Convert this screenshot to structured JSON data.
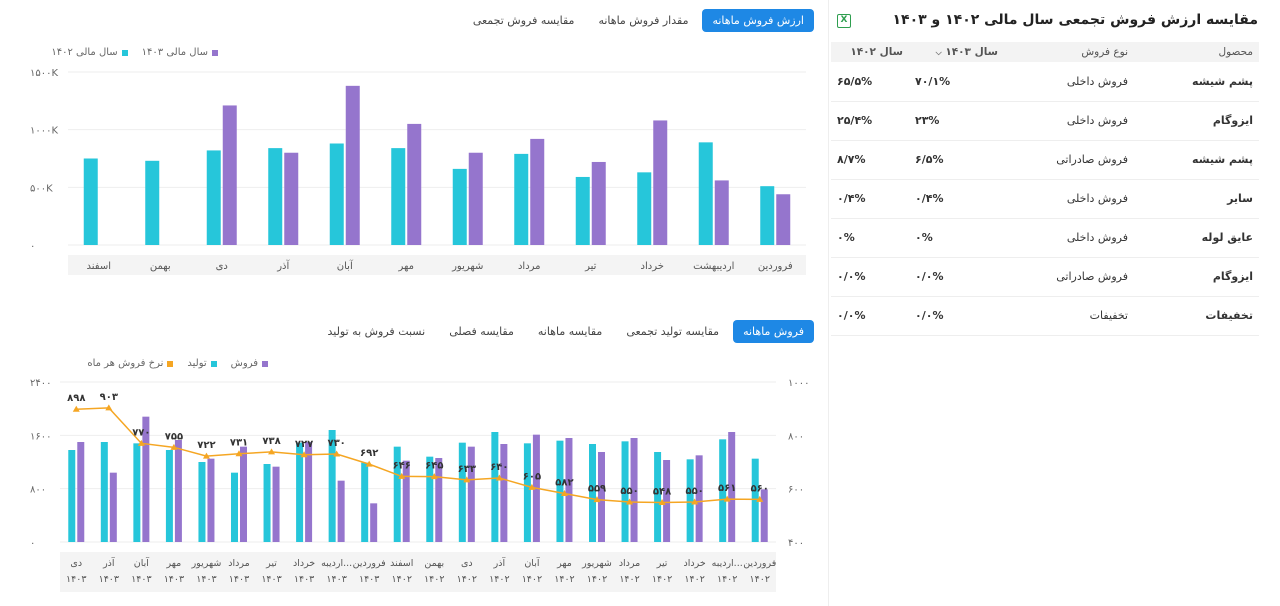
{
  "top_tabs": [
    "ارزش فروش ماهانه",
    "مقدار فروش ماهانه",
    "مقایسه فروش تجمعی"
  ],
  "top_active": 0,
  "bottom_tabs": [
    "فروش ماهانه",
    "مقایسه تولید تجمعی",
    "مقایسه ماهانه",
    "مقایسه فصلی",
    "نسبت فروش به تولید"
  ],
  "bottom_active": 0,
  "colors": {
    "teal": "#26c6da",
    "purple": "#9575cd",
    "orange": "#f5a623",
    "accent": "#1e88e5"
  },
  "chart_data": [
    {
      "type": "bar",
      "categories": [
        "فروردین",
        "اردیبهشت",
        "خرداد",
        "تیر",
        "مرداد",
        "شهریور",
        "مهر",
        "آبان",
        "آذر",
        "دی",
        "بهمن",
        "اسفند"
      ],
      "series": [
        {
          "name": "سال مالی ۱۴۰۲",
          "values": [
            510,
            890,
            630,
            590,
            790,
            660,
            840,
            880,
            840,
            820,
            730,
            750
          ]
        },
        {
          "name": "سال مالی ۱۴۰۳",
          "values": [
            440,
            560,
            1080,
            720,
            920,
            800,
            1050,
            1380,
            800,
            1210,
            null,
            null
          ]
        }
      ],
      "yticks": [
        "۰",
        "۵۰۰K",
        "۱۰۰۰K",
        "۱۵۰۰K"
      ],
      "ylim": [
        0,
        1500
      ]
    },
    {
      "type": "bar+line",
      "categories": [
        "فروردین ۱۴۰۲",
        "اردیبه... ۱۴۰۲",
        "خرداد ۱۴۰۲",
        "تیر ۱۴۰۲",
        "مرداد ۱۴۰۲",
        "شهریور ۱۴۰۲",
        "مهر ۱۴۰۲",
        "آبان ۱۴۰۲",
        "آذر ۱۴۰۲",
        "دی ۱۴۰۲",
        "بهمن ۱۴۰۲",
        "اسفند ۱۴۰۲",
        "فروردین ۱۴۰۳",
        "اردیبه... ۱۴۰۳",
        "خرداد ۱۴۰۳",
        "تیر ۱۴۰۳",
        "مرداد ۱۴۰۳",
        "شهریور ۱۴۰۳",
        "مهر ۱۴۰۳",
        "آبان ۱۴۰۳",
        "آذر ۱۴۰۳",
        "دی ۱۴۰۳"
      ],
      "series": [
        {
          "name": "تولید",
          "values": [
            1250,
            1540,
            1240,
            1350,
            1510,
            1470,
            1520,
            1480,
            1650,
            1490,
            1280,
            1430,
            1190,
            1680,
            1490,
            1170,
            1040,
            1200,
            1380,
            1480,
            1500,
            1380
          ]
        },
        {
          "name": "فروش",
          "values": [
            790,
            1650,
            1300,
            1230,
            1560,
            1350,
            1560,
            1610,
            1470,
            1430,
            1260,
            1220,
            580,
            920,
            1500,
            1130,
            1430,
            1250,
            1530,
            1880,
            1040,
            1500
          ]
        },
        {
          "name": "نرخ فروش هر ماه",
          "values": [
            560,
            561,
            550,
            548,
            550,
            559,
            582,
            605,
            640,
            633,
            645,
            646,
            692,
            730,
            727,
            738,
            731,
            722,
            755,
            770,
            903,
            898
          ]
        }
      ],
      "point_labels": [
        "۵۶۰",
        "۵۶۱",
        "۵۵۰",
        "۵۴۸",
        "۵۵۰",
        "۵۵۹",
        "۵۸۲",
        "۶۰۵",
        "۶۴۰",
        "۶۳۳",
        "۶۴۵",
        "۶۴۶",
        "۶۹۲",
        "۷۳۰",
        "۷۲۷",
        "۷۳۸",
        "۷۳۱",
        "۷۲۲",
        "۷۵۵",
        "۷۷۰",
        "۹۰۳",
        "۸۹۸"
      ],
      "yticks_left": [
        "۰",
        "۸۰۰",
        "۱۶۰۰",
        "۲۴۰۰"
      ],
      "ylim_left": [
        0,
        2400
      ],
      "yticks_right": [
        "۴۰۰",
        "۶۰۰",
        "۸۰۰",
        "۱۰۰۰"
      ],
      "ylim_right": [
        400,
        1000
      ]
    }
  ],
  "table": {
    "title": "مقایسه ارزش فروش تجمعی سال مالی ۱۴۰۲ و ۱۴۰۳",
    "headers": [
      "محصول",
      "نوع فروش",
      "سال ۱۴۰۳",
      "سال ۱۴۰۲"
    ],
    "rows": [
      [
        "پشم شیشه",
        "فروش داخلی",
        "۷۰/۱%",
        "۶۵/۵%"
      ],
      [
        "ایزوگام",
        "فروش داخلی",
        "۲۳%",
        "۲۵/۴%"
      ],
      [
        "پشم شیشه",
        "فروش صادراتی",
        "۶/۵%",
        "۸/۷%"
      ],
      [
        "سایر",
        "فروش داخلی",
        "۰/۴%",
        "۰/۴%"
      ],
      [
        "عایق لوله",
        "فروش داخلی",
        "۰%",
        "۰%"
      ],
      [
        "ایزوگام",
        "فروش صادراتی",
        "۰/۰%",
        "۰/۰%"
      ],
      [
        "تخفیفات",
        "تخفیفات",
        "۰/۰%",
        "۰/۰%"
      ]
    ]
  }
}
